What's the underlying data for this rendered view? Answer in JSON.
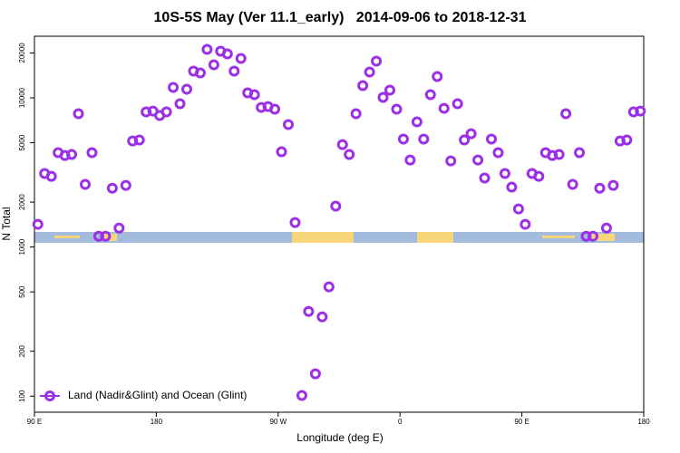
{
  "chart_data": {
    "type": "scatter",
    "title": "10S-5S May (Ver 11.1_early)   2014-09-06 to 2018-12-31",
    "x_label": "Longitude (deg E)",
    "y_label": "N Total",
    "log_y": true,
    "legend": "bottom-left",
    "xlim": [
      90,
      540
    ],
    "ylim": [
      78,
      25900
    ],
    "xticks": [
      {
        "value": 90,
        "label": "90 E"
      },
      180,
      {
        "value": 270,
        "label": "90 W"
      },
      {
        "value": 360,
        "label": "0"
      },
      {
        "value": 450,
        "label": "90 E"
      },
      {
        "value": 540,
        "label": "180"
      }
    ],
    "yticks": [
      100,
      200,
      500,
      1000,
      2000,
      5000,
      10000,
      20000
    ],
    "series": [
      {
        "name": "Land (Nadir&Glint) and Ocean (Glint)",
        "color": "#9b30e6",
        "x": [
          92.5,
          97.5,
          102.5,
          107.5,
          112.5,
          117.5,
          122.5,
          127.5,
          132.5,
          137.5,
          142.5,
          147.5,
          152.5,
          157.5,
          162.5,
          167.5,
          172.5,
          177.5,
          182.5,
          187.5,
          192.5,
          197.5,
          202.5,
          207.5,
          212.5,
          217.5,
          222.5,
          227.5,
          232.5,
          237.5,
          242.5,
          247.5,
          252.5,
          257.5,
          262.5,
          267.5,
          272.5,
          277.5,
          282.5,
          287.5,
          292.5,
          297.5,
          302.5,
          307.5,
          312.5,
          317.5,
          322.5,
          327.5,
          332.5,
          337.5,
          342.5,
          347.5,
          352.5,
          357.5,
          362.5,
          367.5,
          372.5,
          377.5,
          382.5,
          387.5,
          392.5,
          397.5,
          402.5,
          407.5,
          412.5,
          417.5,
          422.5,
          427.5,
          432.5,
          437.5,
          442.5,
          447.5,
          452.5,
          457.5,
          462.5,
          467.5,
          472.5,
          477.5,
          482.5,
          487.5,
          492.5,
          497.5,
          502.5,
          507.5,
          512.5,
          517.5,
          522.5,
          527.5,
          532.5,
          537.5
        ],
        "values": [
          1420,
          3110,
          2980,
          4290,
          4110,
          4170,
          7830,
          2630,
          4290,
          1180,
          1180,
          2480,
          1340,
          2590,
          5140,
          5220,
          8050,
          8160,
          7610,
          8050,
          11750,
          9130,
          11420,
          15110,
          14690,
          21150,
          16670,
          20560,
          19710,
          15110,
          18380,
          10800,
          10500,
          8630,
          8750,
          8400,
          4350,
          6620,
          1460,
          101,
          370,
          141,
          340,
          540,
          1880,
          4860,
          4170,
          7830,
          12080,
          14900,
          17620,
          10070,
          11270,
          8400,
          5290,
          3830,
          6900,
          5290,
          10500,
          13900,
          8510,
          3780,
          9130,
          5220,
          5750,
          3830,
          2900,
          5290,
          4290,
          3110,
          2520,
          1800,
          1420,
          3110,
          2980,
          4290,
          4110,
          4170,
          7830,
          2630,
          4290,
          1180,
          1180,
          2480,
          1340,
          2590,
          5140,
          5220,
          8050,
          8160
        ]
      }
    ]
  }
}
